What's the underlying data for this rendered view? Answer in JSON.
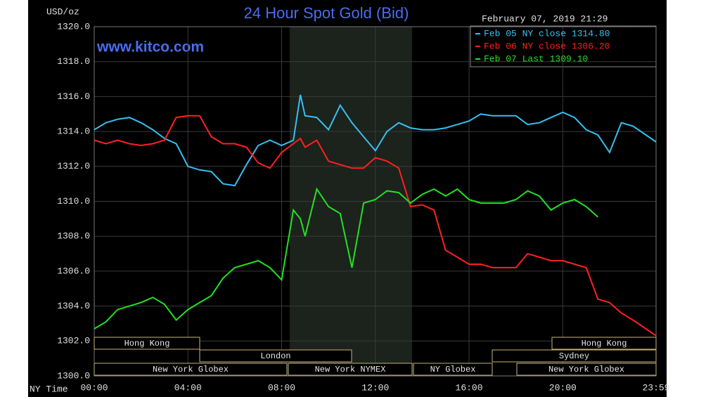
{
  "chart_data": {
    "type": "line",
    "title": "24 Hour Spot Gold (Bid)",
    "date": "February 07, 2019 21:29",
    "site": "www.kitco.com",
    "ylabel": "USD/oz",
    "xlabel": "NY Time",
    "x": [
      0,
      0.5,
      1,
      1.5,
      2,
      2.5,
      3,
      3.5,
      4,
      4.5,
      5,
      5.5,
      6,
      6.5,
      7,
      7.5,
      8,
      8.5,
      8.8,
      9,
      9.5,
      10,
      10.5,
      11,
      11.5,
      12,
      12.5,
      13,
      13.5,
      14,
      14.5,
      15,
      15.5,
      16,
      16.5,
      17,
      17.5,
      18,
      18.5,
      19,
      19.5,
      20,
      20.5,
      21,
      21.5,
      22,
      22.5,
      23,
      23.983
    ],
    "series": [
      {
        "name": "Feb 05 NY close 1314.80",
        "color": "#35c0f0",
        "values": [
          1314.1,
          1314.5,
          1314.7,
          1314.8,
          1314.5,
          1314.1,
          1313.6,
          1313.3,
          1312.0,
          1311.8,
          1311.7,
          1311.0,
          1310.9,
          1312.1,
          1313.2,
          1313.5,
          1313.2,
          1313.5,
          1316.1,
          1314.9,
          1314.8,
          1314.1,
          1315.5,
          1314.5,
          1313.7,
          1312.9,
          1314.0,
          1314.5,
          1314.2,
          1314.1,
          1314.1,
          1314.2,
          1314.4,
          1314.6,
          1315.0,
          1314.9,
          1314.9,
          1314.9,
          1314.4,
          1314.5,
          1314.8,
          1315.1,
          1314.8,
          1314.1,
          1313.8,
          1312.8,
          1314.5,
          1314.3,
          1313.4
        ]
      },
      {
        "name": "Feb 06 NY close 1306.20",
        "color": "#ff2020",
        "values": [
          1313.5,
          1313.3,
          1313.5,
          1313.3,
          1313.2,
          1313.3,
          1313.5,
          1314.8,
          1314.9,
          1314.9,
          1313.7,
          1313.3,
          1313.3,
          1313.1,
          1312.2,
          1311.9,
          1312.8,
          1313.3,
          1313.6,
          1313.1,
          1313.5,
          1312.3,
          1312.1,
          1311.9,
          1311.9,
          1312.5,
          1312.3,
          1311.9,
          1309.7,
          1309.8,
          1309.5,
          1307.2,
          1306.8,
          1306.4,
          1306.4,
          1306.2,
          1306.2,
          1306.2,
          1307.0,
          1306.8,
          1306.6,
          1306.6,
          1306.4,
          1306.2,
          1304.4,
          1304.2,
          1303.6,
          1303.2,
          1302.3
        ]
      },
      {
        "name": "Feb 07 Last 1309.10",
        "color": "#22e022",
        "values": [
          1302.7,
          1303.1,
          1303.8,
          1304.0,
          1304.2,
          1304.5,
          1304.1,
          1303.2,
          1303.8,
          1304.2,
          1304.6,
          1305.6,
          1306.2,
          1306.4,
          1306.6,
          1306.2,
          1305.5,
          1309.5,
          1309.0,
          1308.0,
          1310.7,
          1309.7,
          1309.3,
          1306.2,
          1309.9,
          1310.1,
          1310.6,
          1310.5,
          1309.9,
          1310.4,
          1310.7,
          1310.3,
          1310.7,
          1310.1,
          1309.9,
          1309.9,
          1309.9,
          1310.1,
          1310.6,
          1310.3,
          1309.5,
          1309.9,
          1310.1,
          1309.7,
          1309.1,
          null,
          null,
          null,
          null
        ]
      }
    ],
    "xlim": [
      0,
      23.983
    ],
    "xticks": [
      {
        "value": 0,
        "label": "00:00"
      },
      {
        "value": 4,
        "label": "04:00"
      },
      {
        "value": 8,
        "label": "08:00"
      },
      {
        "value": 12,
        "label": "12:00"
      },
      {
        "value": 16,
        "label": "16:00"
      },
      {
        "value": 20,
        "label": "20:00"
      },
      {
        "value": 23.983,
        "label": "23:59"
      }
    ],
    "ylim": [
      1300,
      1320
    ],
    "yticks": [
      {
        "value": 1300,
        "label": "1300.0"
      },
      {
        "value": 1302,
        "label": "1302.0"
      },
      {
        "value": 1304,
        "label": "1304.0"
      },
      {
        "value": 1306,
        "label": "1306.0"
      },
      {
        "value": 1308,
        "label": "1308.0"
      },
      {
        "value": 1310,
        "label": "1310.0"
      },
      {
        "value": 1312,
        "label": "1312.0"
      },
      {
        "value": 1314,
        "label": "1314.0"
      },
      {
        "value": 1316,
        "label": "1316.0"
      },
      {
        "value": 1318,
        "label": "1318.0"
      },
      {
        "value": 1320,
        "label": "1320.0"
      }
    ],
    "grid": true,
    "sessions": [
      "Hong Kong",
      "London",
      "New York Globex",
      "New York NYMEX",
      "NY Globex",
      "Sydney",
      "Hong Kong",
      "New York Globex"
    ]
  }
}
